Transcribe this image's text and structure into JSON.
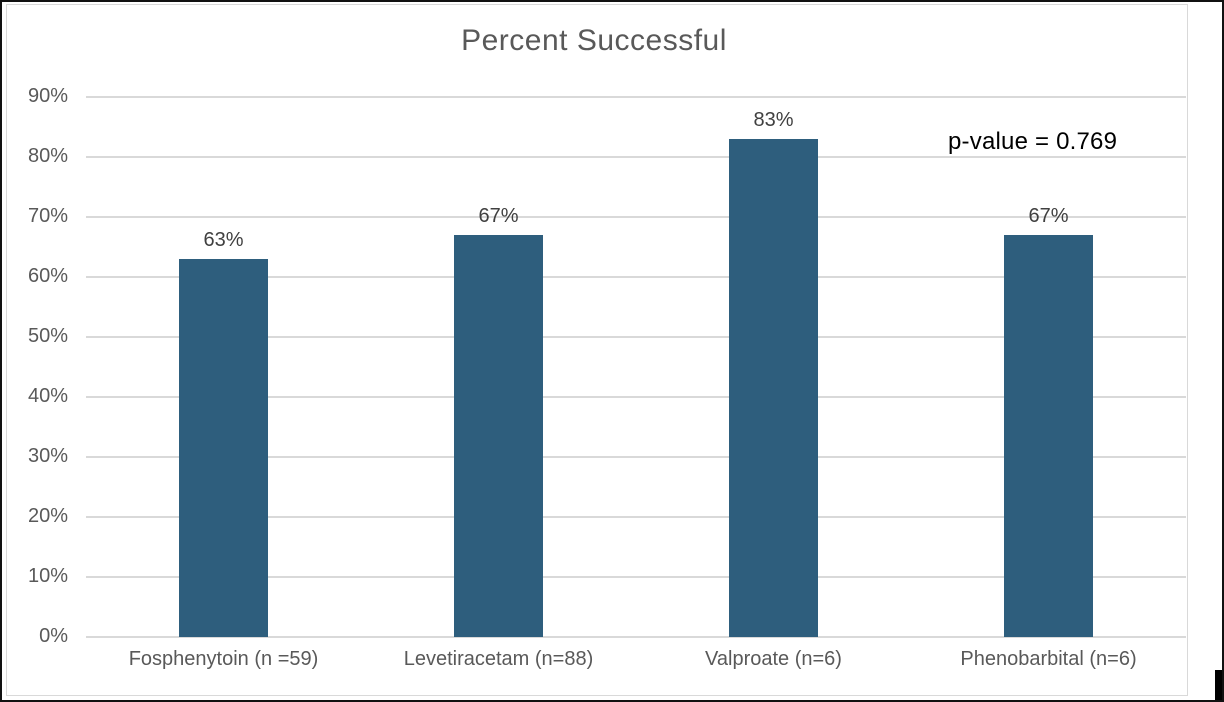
{
  "chart_data": {
    "type": "bar",
    "title": "Percent Successful",
    "categories": [
      "Fosphenytoin (n =59)",
      "Levetiracetam (n=88)",
      "Valproate (n=6)",
      "Phenobarbital (n=6)"
    ],
    "values": [
      63,
      67,
      83,
      67
    ],
    "value_labels": [
      "63%",
      "67%",
      "83%",
      "67%"
    ],
    "annotation": "p-value = 0.769",
    "xlabel": "",
    "ylabel": "",
    "ylim": [
      0,
      90
    ],
    "yticks": [
      0,
      10,
      20,
      30,
      40,
      50,
      60,
      70,
      80,
      90
    ],
    "ytick_labels": [
      "0%",
      "10%",
      "20%",
      "30%",
      "40%",
      "50%",
      "60%",
      "70%",
      "80%",
      "90%"
    ],
    "grid": true,
    "legend_position": "none",
    "colors": {
      "bar": "#2e5e7d",
      "title_text": "#595959",
      "axis_text": "#595959",
      "data_label_text": "#404040",
      "annotation_text": "#000000",
      "gridline": "#d9d9d9",
      "chart_frame": "#d9d9d9",
      "outer_border": "#111111",
      "background": "#ffffff"
    }
  }
}
